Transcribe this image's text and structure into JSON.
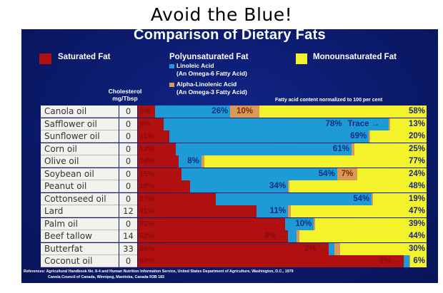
{
  "page_title": "Avoid the Blue!",
  "chart_data": {
    "type": "bar",
    "stacked": true,
    "orientation": "horizontal",
    "title": "Comparison of Dietary Fats",
    "note": "Fatty acid content normalized to 100 per cent",
    "column_header": "Cholesterol mg/Tbsp",
    "legend": {
      "saturated": "Saturated Fat",
      "polyunsaturated": "Polyunsaturated Fat",
      "linoleic": "Linoleic Acid",
      "linoleic_sub": "(An Omega-6 Fatty Acid)",
      "alpha": "Alpha-Linolenic Acid",
      "alpha_sub": "(An Omega-3 Fatty Acid)",
      "monounsaturated": "Monounsaturated Fat"
    },
    "colors": {
      "saturated": "#b01010",
      "linoleic": "#1e9ad6",
      "alpha": "#d99a55",
      "mono": "#f4f22a"
    },
    "categories": [
      "Canola oil",
      "Safflower oil",
      "Sunflower oil",
      "Corn oil",
      "Olive oil",
      "Soybean oil",
      "Peanut oil",
      "Cottonseed oil",
      "Lard",
      "Palm oil",
      "Beef tallow",
      "Butterfat",
      "Coconut oil"
    ],
    "cholesterol": [
      "0",
      "0",
      "0",
      "0",
      "0",
      "0",
      "0",
      "0",
      "12",
      "0",
      "14",
      "33",
      "0"
    ],
    "series": [
      {
        "name": "Saturated Fat",
        "values": [
          6,
          9,
          11,
          13,
          14,
          15,
          18,
          27,
          41,
          51,
          52,
          66,
          92
        ]
      },
      {
        "name": "Linoleic Acid",
        "values": [
          26,
          78,
          69,
          61,
          8,
          54,
          34,
          54,
          11,
          10,
          3,
          2,
          2
        ]
      },
      {
        "name": "Alpha-Linolenic Acid",
        "values": [
          10,
          0,
          0,
          1,
          1,
          7,
          0,
          0,
          1,
          0,
          1,
          2,
          0
        ]
      },
      {
        "name": "Monounsaturated Fat",
        "values": [
          58,
          13,
          20,
          25,
          77,
          24,
          48,
          19,
          47,
          39,
          44,
          30,
          6
        ]
      }
    ],
    "alpha_labels": [
      "10%",
      "Trace",
      "",
      "1%",
      "1%",
      "7%",
      "",
      "",
      "1%",
      "",
      "1%",
      "2%",
      ""
    ]
  },
  "references": {
    "line1": "References: Agricultural Handbook No. 8-4 and Human Nutrition Information Service, United States Department of Agriculture, Washington, D.C., 1979",
    "line2": "Canola Council of Canada, Winnipeg, Manitoba, Canada R3B 183"
  }
}
